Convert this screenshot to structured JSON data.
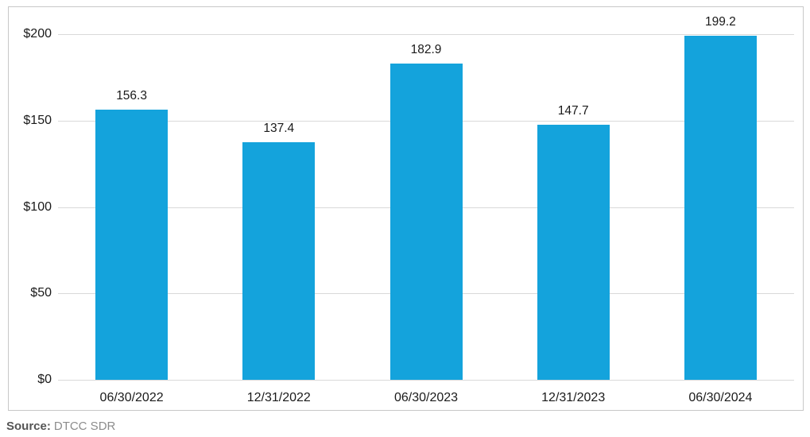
{
  "chart_data": {
    "type": "bar",
    "categories": [
      "06/30/2022",
      "12/31/2022",
      "06/30/2023",
      "12/31/2023",
      "06/30/2024"
    ],
    "values": [
      156.3,
      137.4,
      182.9,
      147.7,
      199.2
    ],
    "value_labels": [
      "156.3",
      "137.4",
      "182.9",
      "147.7",
      "199.2"
    ],
    "y_ticks": [
      0,
      50,
      100,
      150,
      200
    ],
    "y_tick_labels": [
      "$0",
      "$50",
      "$100",
      "$150",
      "$200"
    ],
    "ylim": [
      0,
      200
    ],
    "title": "",
    "xlabel": "",
    "ylabel": "",
    "grid": true,
    "legend_position": "none",
    "bar_color": "#14a3dc",
    "gridline_color": "#d9d9d9",
    "text_color": "#1a1a1a"
  },
  "source": {
    "label": "Source:",
    "value": "DTCC SDR"
  }
}
